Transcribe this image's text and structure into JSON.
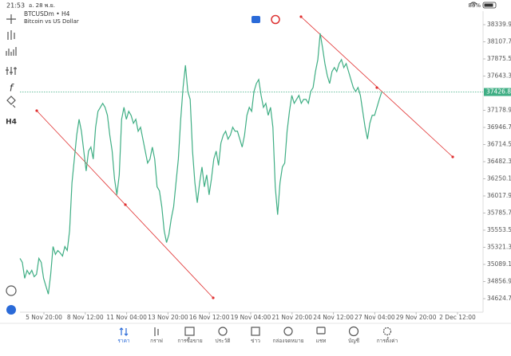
{
  "status_bar": {
    "time": "21:53",
    "date": "อ. 28 พ.ย.",
    "battery": "83%"
  },
  "toolbar": {
    "function_icon": "f",
    "timeframe": "H4"
  },
  "chart_data": {
    "type": "line",
    "title": "BTCUSDm • H4",
    "subtitle": "Bitcoin vs US Dollar",
    "color": "#3fae84",
    "x_labels": [
      "5 Nov 20:00",
      "8 Nov 12:00",
      "11 Nov 04:00",
      "13 Nov 20:00",
      "16 Nov 12:00",
      "19 Nov 04:00",
      "21 Nov 20:00",
      "24 Nov 12:00",
      "27 Nov 04:00",
      "29 Nov 20:00",
      "2 Dec 12:00"
    ],
    "values": [
      35171,
      35117,
      34901,
      35009,
      34955,
      35009,
      34923,
      34955,
      35171,
      35117,
      34901,
      34793,
      34686,
      34955,
      35332,
      35225,
      35278,
      35246,
      35203,
      35332,
      35278,
      35548,
      36195,
      36518,
      36842,
      37057,
      36895,
      36626,
      36356,
      36626,
      36680,
      36518,
      36949,
      37165,
      37219,
      37273,
      37219,
      37111,
      36842,
      36626,
      36249,
      36033,
      36303,
      37057,
      37219,
      37057,
      37165,
      37111,
      37003,
      37057,
      36895,
      36949,
      36788,
      36626,
      36464,
      36518,
      36680,
      36518,
      36141,
      36087,
      35871,
      35548,
      35386,
      35494,
      35710,
      35871,
      36195,
      36518,
      37057,
      37488,
      37790,
      37434,
      37327,
      36626,
      36195,
      35925,
      36195,
      36410,
      36141,
      36303,
      36033,
      36249,
      36518,
      36626,
      36432,
      36734,
      36842,
      36895,
      36788,
      36842,
      36949,
      36895,
      36895,
      36788,
      36680,
      36842,
      37111,
      37219,
      37165,
      37434,
      37542,
      37596,
      37381,
      37219,
      37273,
      37111,
      37219,
      36949,
      36141,
      35764,
      36195,
      36410,
      36464,
      36895,
      37165,
      37381,
      37273,
      37327,
      37381,
      37273,
      37327,
      37327,
      37273,
      37434,
      37488,
      37704,
      37866,
      38221,
      38027,
      37812,
      37650,
      37542,
      37704,
      37758,
      37704,
      37812,
      37866,
      37758,
      37812,
      37704,
      37596,
      37488,
      37434,
      37488,
      37381,
      37165,
      36949,
      36788,
      37003,
      37111,
      37111,
      37219,
      37327,
      37427
    ],
    "ylim": [
      34463,
      38480
    ],
    "yticks": [
      {
        "value": 38339.9,
        "label": "38339.90"
      },
      {
        "value": 38107.7,
        "label": "38107.70"
      },
      {
        "value": 37875.5,
        "label": "37875.50"
      },
      {
        "value": 37643.3,
        "label": "37643.30"
      },
      {
        "value": 37178.9,
        "label": "37178.90"
      },
      {
        "value": 36946.7,
        "label": "36946.70"
      },
      {
        "value": 36714.5,
        "label": "36714.50"
      },
      {
        "value": 36482.3,
        "label": "36482.30"
      },
      {
        "value": 36250.1,
        "label": "36250.10"
      },
      {
        "value": 36017.9,
        "label": "36017.90"
      },
      {
        "value": 35785.7,
        "label": "35785.70"
      },
      {
        "value": 35553.5,
        "label": "35553.50"
      },
      {
        "value": 35321.3,
        "label": "35321.30"
      },
      {
        "value": 35089.1,
        "label": "35089.10"
      },
      {
        "value": 34856.9,
        "label": "34856.90"
      },
      {
        "value": 34624.7,
        "label": "34624.70"
      }
    ],
    "current_price": 37426.87
  },
  "tabs": [
    {
      "label": "ราคา"
    },
    {
      "label": "กราฟ"
    },
    {
      "label": "การซื้อขาย"
    },
    {
      "label": "ประวัติ"
    },
    {
      "label": "ข่าว"
    },
    {
      "label": "กล่องจดหมาย"
    },
    {
      "label": "แชท"
    },
    {
      "label": "บัญชี"
    },
    {
      "label": "การตั้งค่า"
    }
  ]
}
